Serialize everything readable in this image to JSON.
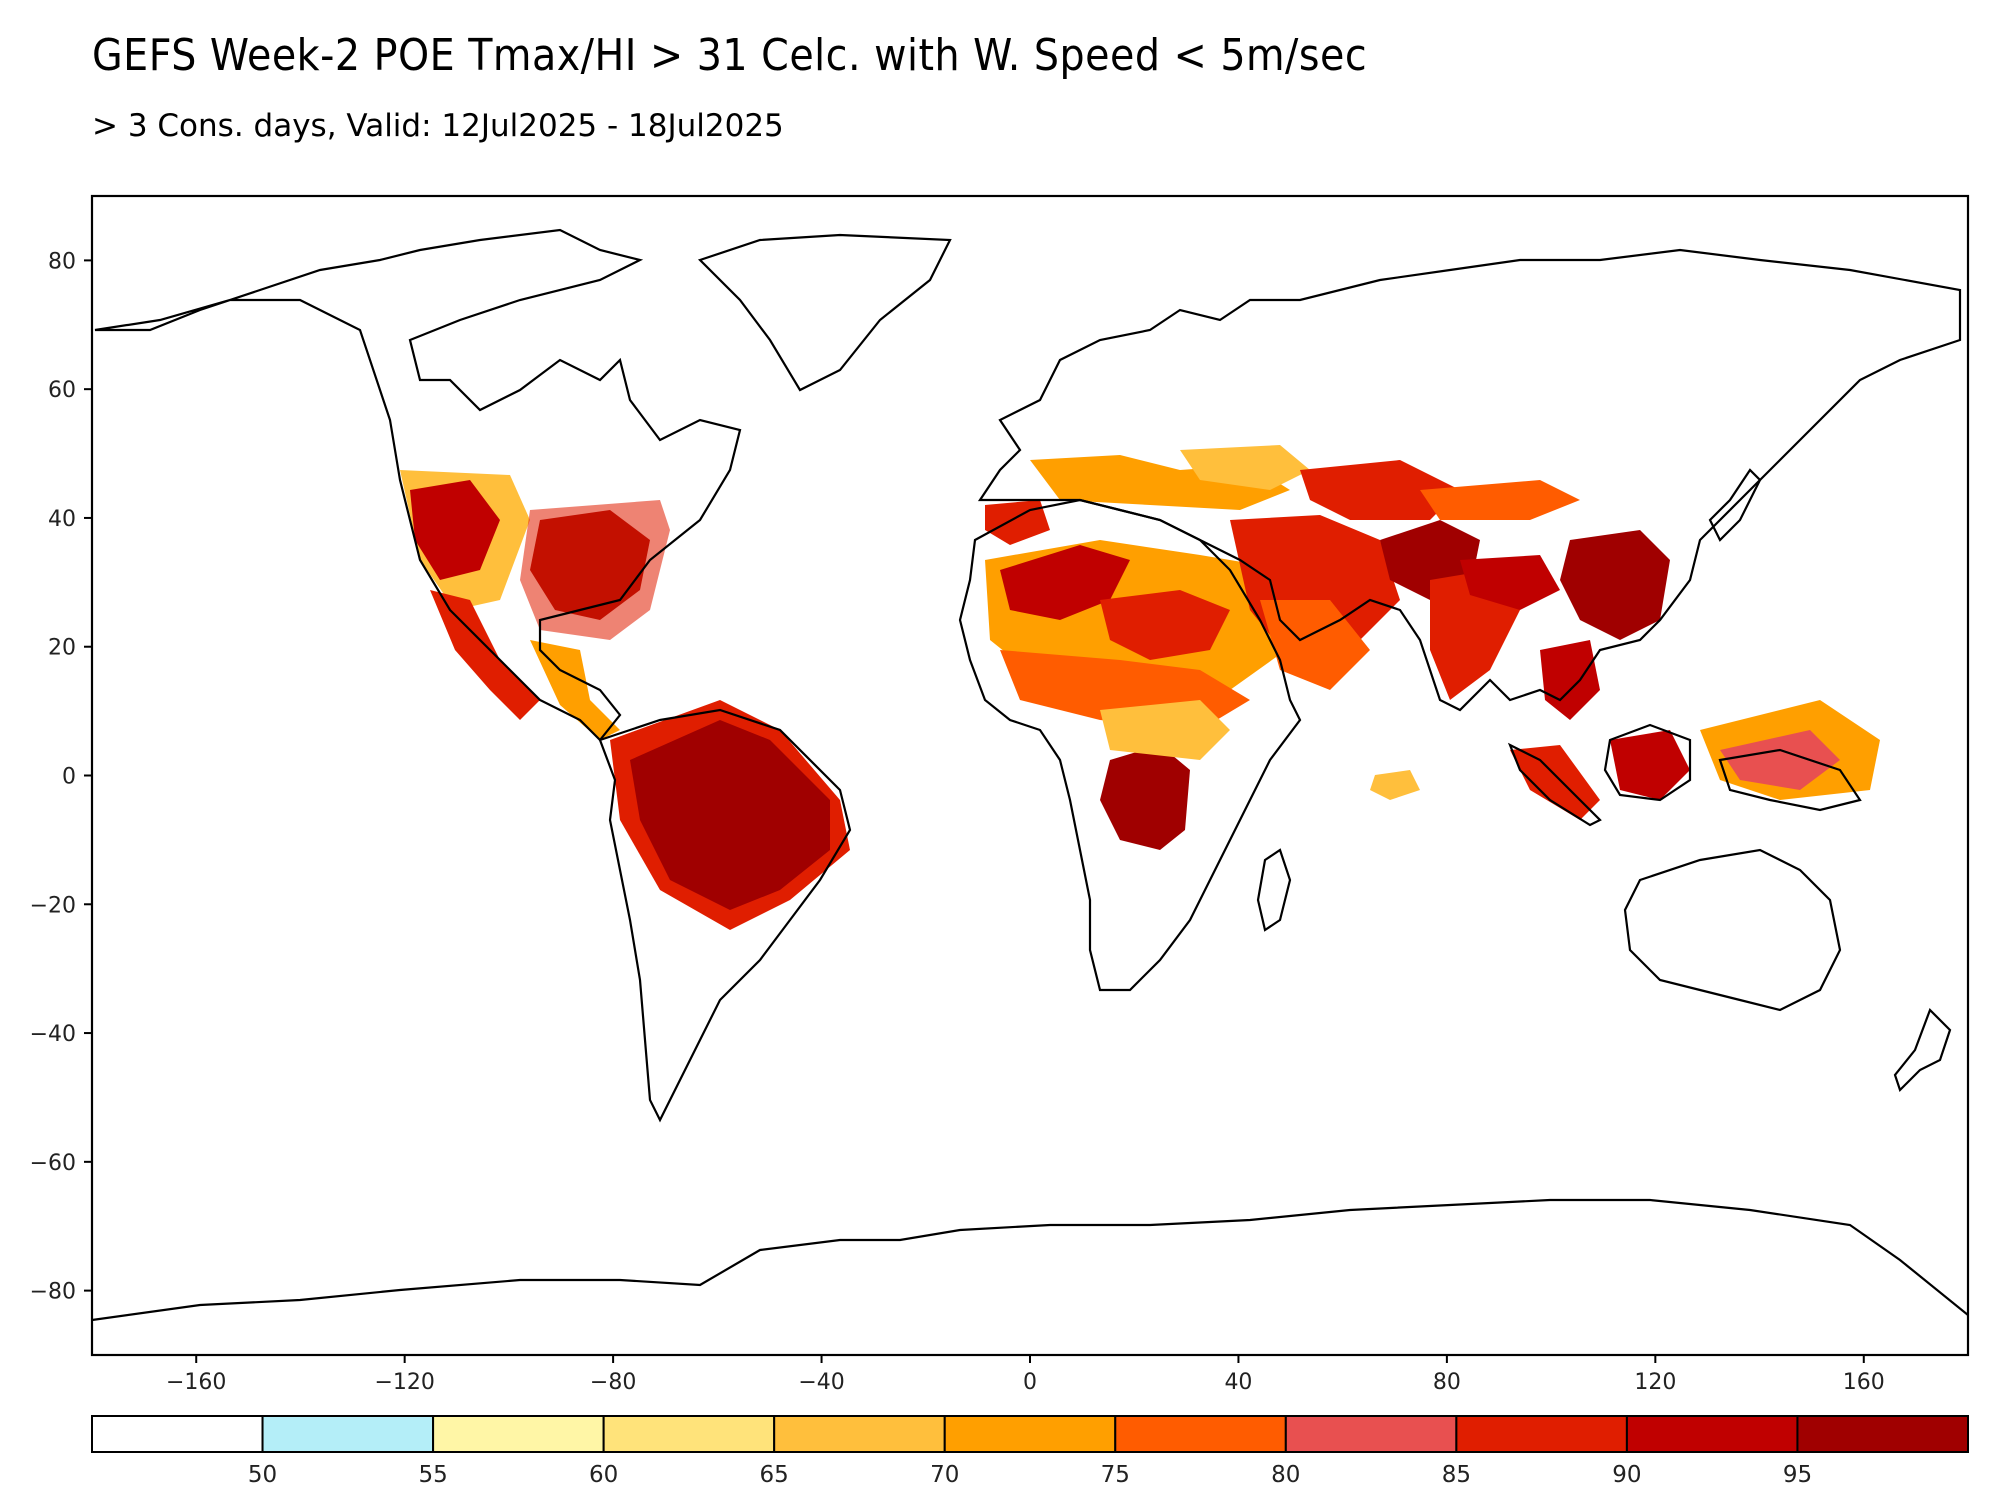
{
  "title": "GEFS Week-2 POE Tmax/HI > 31 Celc. with W. Speed < 5m/sec",
  "subtitle": "> 3 Cons. days, Valid: 12Jul2025 - 18Jul2025",
  "map": {
    "projection": "equirectangular",
    "lon_range": [
      -180,
      180
    ],
    "lat_range": [
      -90,
      90
    ],
    "lon_ticks": [
      -160,
      -120,
      -80,
      -40,
      0,
      40,
      80,
      120,
      160
    ],
    "lon_tick_labels": [
      "−160",
      "−120",
      "−80",
      "−40",
      "0",
      "40",
      "80",
      "120",
      "160"
    ],
    "lat_ticks": [
      80,
      60,
      40,
      20,
      0,
      -20,
      -40,
      -60,
      -80
    ],
    "lat_tick_labels": [
      "80",
      "60",
      "40",
      "20",
      "0",
      "−20",
      "−40",
      "−60",
      "−80"
    ],
    "coastline_color": "#000000",
    "ocean_color": "#ffffff",
    "land_color": "#ffffff"
  },
  "colorbar": {
    "levels": [
      "50",
      "55",
      "60",
      "65",
      "70",
      "75",
      "80",
      "85",
      "90",
      "95"
    ],
    "colors": [
      "#ffffff",
      "#b4eef8",
      "#fff6a6",
      "#ffe37a",
      "#ffbf3c",
      "#ff9f00",
      "#ff5c00",
      "#e85050",
      "#e01e00",
      "#c00000",
      "#a00000"
    ]
  }
}
